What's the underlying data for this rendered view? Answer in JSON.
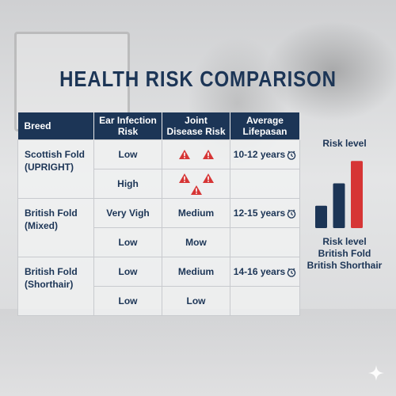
{
  "title": "HEALTH RISK COMPARISON",
  "table": {
    "headers": [
      "Breed",
      "Ear Infection Risk",
      "Joint Disease Risk",
      "Average Lifepasan"
    ],
    "rows": [
      {
        "breed": "Scottish Fold (UPRIGHT)",
        "ear": "Low",
        "joint_warnings": 2,
        "lifespan": "10-12 years"
      },
      {
        "ear": "High",
        "joint_warnings": 3,
        "lifespan": ""
      },
      {
        "breed": "British Fold (Mixed)",
        "ear": "Very Vigh",
        "joint": "Medium",
        "lifespan": "12-15 years"
      },
      {
        "ear": "Low",
        "joint": "Mow",
        "lifespan": ""
      },
      {
        "breed": "British Fold (Shorthair)",
        "ear": "Low",
        "joint": "Medium",
        "lifespan": "14-16 years"
      },
      {
        "ear": "Low",
        "joint": "Low",
        "lifespan": ""
      }
    ]
  },
  "chart_data": {
    "type": "bar",
    "title": "Risk level",
    "categories": [
      "Risk level",
      "British Fold",
      "British Shorthair"
    ],
    "values": [
      1,
      2,
      3
    ],
    "colors": [
      "#1c3556",
      "#1c3556",
      "#d63535"
    ],
    "ylim": [
      0,
      3.4
    ],
    "legend_lines": [
      "Risk level",
      "British Fold",
      "British Shorthair"
    ]
  },
  "icons": {
    "warning": "warning-triangle-icon",
    "clock": "clock-icon",
    "sparkle": "sparkle-icon"
  }
}
